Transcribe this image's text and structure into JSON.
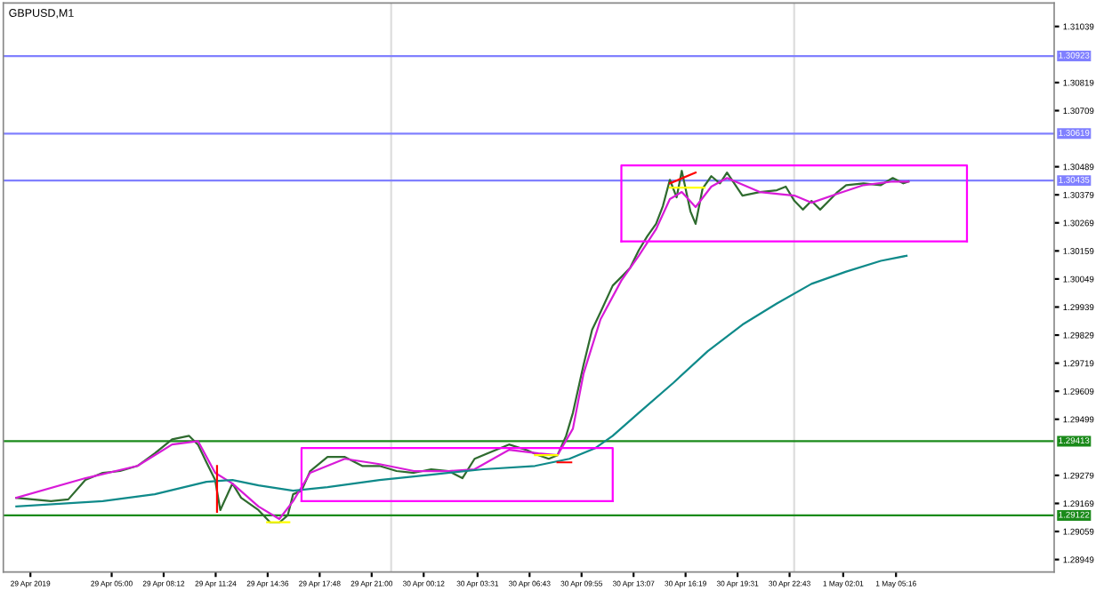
{
  "chart_data": {
    "type": "line",
    "title": "GBPUSD,M1",
    "series": [
      {
        "color": "#2f6b2f",
        "x": [
          "2019-04-28T23:08",
          "2019-04-29T01:16",
          "2019-04-29T02:20",
          "2019-04-29T03:23",
          "2019-04-29T04:27",
          "2019-04-29T05:31",
          "2019-04-29T06:35",
          "2019-04-29T07:39",
          "2019-04-29T08:43",
          "2019-04-29T09:46",
          "2019-04-29T10:19",
          "2019-04-29T10:50",
          "2019-04-29T11:22",
          "2019-04-29T11:41",
          "2019-04-29T12:26",
          "2019-04-29T12:58",
          "2019-04-29T14:02",
          "2019-04-29T14:46",
          "2019-04-29T15:19",
          "2019-04-29T15:50",
          "2019-04-29T16:10",
          "2019-04-29T16:41",
          "2019-04-29T17:13",
          "2019-04-29T18:17",
          "2019-04-29T19:21",
          "2019-04-29T20:25",
          "2019-04-29T21:29",
          "2019-04-29T22:32",
          "2019-04-29T23:36",
          "2019-04-30T00:40",
          "2019-04-30T01:44",
          "2019-04-30T02:35",
          "2019-04-30T03:20",
          "2019-04-30T04:23",
          "2019-04-30T05:27",
          "2019-04-30T06:31",
          "2019-04-30T07:16",
          "2019-04-30T07:54",
          "2019-04-30T08:26",
          "2019-04-30T08:58",
          "2019-04-30T09:23",
          "2019-04-30T10:02",
          "2019-04-30T10:34",
          "2019-04-30T11:05",
          "2019-04-30T11:50",
          "2019-04-30T12:22",
          "2019-04-30T12:54",
          "2019-04-30T13:26",
          "2019-04-30T13:58",
          "2019-04-30T14:30",
          "2019-04-30T14:55",
          "2019-04-30T15:21",
          "2019-04-30T15:46",
          "2019-04-30T16:05",
          "2019-04-30T16:37",
          "2019-04-30T16:56",
          "2019-04-30T17:22",
          "2019-04-30T17:54",
          "2019-04-30T18:26",
          "2019-04-30T18:52",
          "2019-04-30T19:49",
          "2019-04-30T20:53",
          "2019-04-30T21:56",
          "2019-04-30T22:29",
          "2019-04-30T23:01",
          "2019-04-30T23:32",
          "2019-05-01T00:04",
          "2019-05-01T00:36",
          "2019-05-01T01:08",
          "2019-05-01T01:40",
          "2019-05-01T02:12",
          "2019-05-01T03:16",
          "2019-05-01T04:20",
          "2019-05-01T05:04",
          "2019-05-01T05:43",
          "2019-05-01T06:02"
        ],
        "values": [
          1.29191,
          1.29178,
          1.29185,
          1.29261,
          1.29289,
          1.29296,
          1.29316,
          1.29365,
          1.2942,
          1.29434,
          1.29399,
          1.2933,
          1.29261,
          1.29143,
          1.29247,
          1.29191,
          1.29143,
          1.29094,
          1.29094,
          1.29122,
          1.29205,
          1.29219,
          1.29296,
          1.29351,
          1.29351,
          1.29316,
          1.29316,
          1.29296,
          1.29289,
          1.29303,
          1.29296,
          1.29268,
          1.29344,
          1.29372,
          1.294,
          1.29379,
          1.29358,
          1.29344,
          1.29358,
          1.29434,
          1.29524,
          1.29711,
          1.2985,
          1.29919,
          1.30023,
          1.30057,
          1.30092,
          1.30161,
          1.30217,
          1.30265,
          1.30334,
          1.30438,
          1.30369,
          1.30473,
          1.30314,
          1.30265,
          1.30404,
          1.30452,
          1.30424,
          1.30466,
          1.30376,
          1.3039,
          1.30397,
          1.30411,
          1.30355,
          1.30321,
          1.30355,
          1.30321,
          1.30355,
          1.3039,
          1.30417,
          1.30424,
          1.30417,
          1.30445,
          1.30424,
          1.30431
        ]
      },
      {
        "color": "#d81bd8",
        "x": [
          "2019-04-28T23:08",
          "2019-04-29T03:23",
          "2019-04-29T06:35",
          "2019-04-29T08:43",
          "2019-04-29T10:19",
          "2019-04-29T11:22",
          "2019-04-29T12:26",
          "2019-04-29T14:02",
          "2019-04-29T15:19",
          "2019-04-29T16:10",
          "2019-04-29T17:13",
          "2019-04-29T19:21",
          "2019-04-29T21:29",
          "2019-04-29T23:36",
          "2019-04-30T01:44",
          "2019-04-30T03:20",
          "2019-04-30T05:27",
          "2019-04-30T07:16",
          "2019-04-30T08:26",
          "2019-04-30T09:23",
          "2019-04-30T10:02",
          "2019-04-30T11:05",
          "2019-04-30T12:22",
          "2019-04-30T13:26",
          "2019-04-30T14:30",
          "2019-04-30T15:21",
          "2019-04-30T16:05",
          "2019-04-30T16:56",
          "2019-04-30T17:54",
          "2019-04-30T18:52",
          "2019-04-30T20:53",
          "2019-04-30T23:01",
          "2019-05-01T00:04",
          "2019-05-01T01:40",
          "2019-05-01T03:16",
          "2019-05-01T05:04",
          "2019-05-01T06:02"
        ],
        "values": [
          1.29191,
          1.29268,
          1.29316,
          1.294,
          1.29413,
          1.29289,
          1.29247,
          1.29157,
          1.29108,
          1.29178,
          1.29289,
          1.29344,
          1.29323,
          1.29296,
          1.29296,
          1.29303,
          1.29379,
          1.29365,
          1.29358,
          1.29462,
          1.29677,
          1.29891,
          1.30043,
          1.3014,
          1.30244,
          1.30362,
          1.3039,
          1.30331,
          1.30411,
          1.30445,
          1.3039,
          1.30376,
          1.30348,
          1.30383,
          1.30417,
          1.30431,
          1.30431
        ]
      },
      {
        "color": "#0f8a8a",
        "x": [
          "2019-04-28T23:08",
          "2019-04-29T04:27",
          "2019-04-29T07:39",
          "2019-04-29T10:50",
          "2019-04-29T12:26",
          "2019-04-29T14:02",
          "2019-04-29T16:10",
          "2019-04-29T18:17",
          "2019-04-29T21:29",
          "2019-04-30T00:40",
          "2019-04-30T03:52",
          "2019-04-30T07:03",
          "2019-04-30T09:10",
          "2019-04-30T10:46",
          "2019-04-30T11:50",
          "2019-04-30T13:26",
          "2019-04-30T15:34",
          "2019-04-30T17:41",
          "2019-04-30T19:49",
          "2019-04-30T21:56",
          "2019-05-01T00:04",
          "2019-05-01T02:12",
          "2019-05-01T04:20",
          "2019-05-01T05:55"
        ],
        "values": [
          1.29157,
          1.29178,
          1.29205,
          1.29254,
          1.29261,
          1.2924,
          1.29219,
          1.29233,
          1.29261,
          1.29282,
          1.29303,
          1.29316,
          1.29344,
          1.29386,
          1.29434,
          1.29524,
          1.29642,
          1.29766,
          1.2987,
          1.29953,
          1.3003,
          1.30078,
          1.3012,
          1.3014
        ]
      },
      {
        "color": "#ff00ff",
        "x": [
          "2019-04-29T16:41",
          "2019-04-29T16:41",
          "2019-04-30T11:50",
          "2019-04-30T11:50"
        ],
        "values": [
          1.29178,
          1.29386,
          1.29386,
          1.29178
        ]
      },
      {
        "color": "#ff00ff",
        "x": [
          "2019-04-29T16:41",
          "2019-04-30T11:50"
        ],
        "values": [
          1.29178,
          1.29178
        ]
      },
      {
        "color": "#ff00ff",
        "x": [
          "2019-04-30T12:22",
          "2019-04-30T12:22",
          "2019-05-01T09:38",
          "2019-05-01T09:38"
        ],
        "values": [
          1.30196,
          1.30494,
          1.30494,
          1.30196
        ]
      },
      {
        "color": "#ff00ff",
        "x": [
          "2019-04-30T12:22",
          "2019-05-01T09:38"
        ],
        "values": [
          1.30196,
          1.30196
        ]
      },
      {
        "color": "#ffff00",
        "x": [
          "2019-04-29T14:34",
          "2019-04-29T15:56"
        ],
        "values": [
          1.29095,
          1.29095
        ]
      },
      {
        "color": "#ffff00",
        "x": [
          "2019-04-30T07:03",
          "2019-04-30T08:26"
        ],
        "values": [
          1.29358,
          1.29358
        ]
      },
      {
        "color": "#ffff00",
        "x": [
          "2019-04-30T15:21",
          "2019-04-30T17:29"
        ],
        "values": [
          1.30407,
          1.30407
        ]
      },
      {
        "color": "#ff0000",
        "x": [
          "2019-04-29T11:29",
          "2019-04-29T11:29"
        ],
        "values": [
          1.29316,
          1.29136
        ]
      },
      {
        "color": "#ff0000",
        "x": [
          "2019-04-30T08:26",
          "2019-04-30T09:17"
        ],
        "values": [
          1.2933,
          1.2933
        ]
      },
      {
        "color": "#ff0000",
        "x": [
          "2019-04-30T15:21",
          "2019-04-30T16:56"
        ],
        "values": [
          1.30424,
          1.30466
        ]
      }
    ],
    "ref_lines": [
      {
        "axis": "y",
        "value": 1.30923,
        "label": "1.30923",
        "color": "#8080ff"
      },
      {
        "axis": "y",
        "value": 1.30619,
        "label": "1.30619",
        "color": "#8080ff"
      },
      {
        "axis": "y",
        "value": 1.30435,
        "label": "1.30435",
        "color": "#8080ff"
      },
      {
        "axis": "y",
        "value": 1.29413,
        "label": "1.29413",
        "color": "#1a8a1a"
      },
      {
        "axis": "y",
        "value": 1.29122,
        "label": "1.29122",
        "color": "#1a8a1a"
      },
      {
        "axis": "x",
        "value": "2019-04-29T22:12",
        "color": "#dddddd"
      },
      {
        "axis": "x",
        "value": "2019-04-30T23:00",
        "color": "#dddddd"
      }
    ],
    "xlim": [
      "2019-04-28T22:20",
      "2019-05-01T15:00"
    ],
    "ylim": [
      1.289,
      1.31131
    ],
    "xticks": [
      {
        "value": "2019-04-29",
        "label": "29 Apr 2019"
      },
      {
        "value": "2019-04-29T05:00",
        "label": "29 Apr 05:00"
      },
      {
        "value": "2019-04-29T08:12",
        "label": "29 Apr 08:12"
      },
      {
        "value": "2019-04-29T11:24",
        "label": "29 Apr 11:24"
      },
      {
        "value": "2019-04-29T14:36",
        "label": "29 Apr 14:36"
      },
      {
        "value": "2019-04-29T17:48",
        "label": "29 Apr 17:48"
      },
      {
        "value": "2019-04-29T21:00",
        "label": "29 Apr 21:00"
      },
      {
        "value": "2019-04-30T00:12",
        "label": "30 Apr 00:12"
      },
      {
        "value": "2019-04-30T03:31",
        "label": "30 Apr 03:31"
      },
      {
        "value": "2019-04-30T06:43",
        "label": "30 Apr 06:43"
      },
      {
        "value": "2019-04-30T09:55",
        "label": "30 Apr 09:55"
      },
      {
        "value": "2019-04-30T13:07",
        "label": "30 Apr 13:07"
      },
      {
        "value": "2019-04-30T16:19",
        "label": "30 Apr 16:19"
      },
      {
        "value": "2019-04-30T19:31",
        "label": "30 Apr 19:31"
      },
      {
        "value": "2019-04-30T22:43",
        "label": "30 Apr 22:43"
      },
      {
        "value": "2019-05-01T02:01",
        "label": "1 May 02:01"
      },
      {
        "value": "2019-05-01T05:16",
        "label": "1 May 05:16"
      }
    ],
    "yticks": [
      1.31039,
      1.30819,
      1.30709,
      1.30489,
      1.30379,
      1.30269,
      1.30159,
      1.30049,
      1.29939,
      1.29829,
      1.29719,
      1.29609,
      1.29499,
      1.29279,
      1.29169,
      1.29059,
      1.28949
    ],
    "grid": false,
    "line_style": "solid",
    "marker": "none"
  }
}
